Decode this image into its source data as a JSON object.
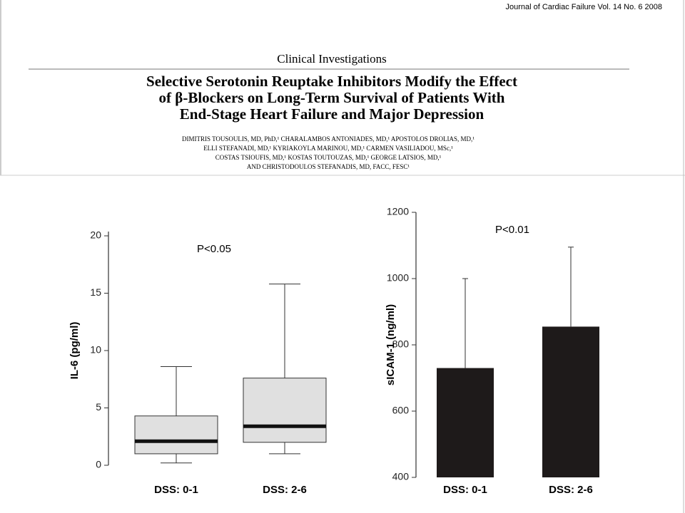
{
  "header": {
    "journal": "Journal of Cardiac Failure Vol. 14 No. 6 2008",
    "section": "Clinical Investigations",
    "title": [
      "Selective Serotonin Reuptake Inhibitors Modify the Effect",
      "of β-Blockers on Long-Term Survival of Patients With",
      "End-Stage Heart Failure and Major Depression"
    ],
    "authors": [
      "DIMITRIS TOUSOULIS, MD, PhD,¹ CHARALAMBOS ANTONIADES, MD,¹ APOSTOLOS DROLIAS, MD,¹",
      "ELLI STEFANADI, MD,¹ KYRIAKOYLA MARINOU, MD,¹ CARMEN VASILIADOU, MSc,¹",
      "COSTAS TSIOUFIS, MD,¹ KOSTAS TOUTOUZAS, MD,¹ GEORGE LATSIOS, MD,¹",
      "AND CHRISTODOULOS STEFANADIS, MD, FACC, FESC¹"
    ]
  },
  "chart_data": [
    {
      "type": "box",
      "y_label": "IL-6 (pg/ml)",
      "annotation": "P<0.05",
      "categories": [
        "DSS: 0-1",
        "DSS: 2-6"
      ],
      "min": [
        0.2,
        1.0
      ],
      "q1": [
        1.0,
        2.0
      ],
      "median": [
        2.1,
        3.4
      ],
      "q3": [
        4.3,
        7.6
      ],
      "max": [
        8.6,
        15.8
      ],
      "color": "#e0e0e0",
      "ylim": [
        0,
        20
      ],
      "yticks": [
        0,
        5,
        10,
        15,
        20
      ]
    },
    {
      "type": "bar",
      "y_label": "sICAM-1 (ng/ml)",
      "annotation": "P<0.01",
      "categories": [
        "DSS: 0-1",
        "DSS: 2-6"
      ],
      "values": [
        730,
        855
      ],
      "errors": [
        270,
        240
      ],
      "color": "#1e1a1a",
      "ylim": [
        400,
        1200
      ],
      "yticks": [
        400,
        600,
        800,
        1000,
        1200
      ]
    }
  ]
}
